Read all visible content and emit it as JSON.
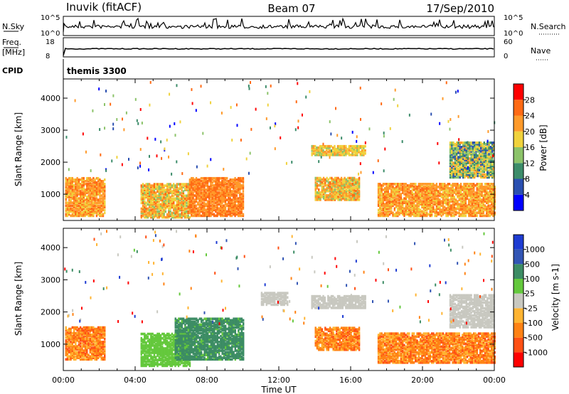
{
  "header": {
    "station": "Inuvik (fitACF)",
    "beam": "Beam 07",
    "date": "17/Sep/2010"
  },
  "top_panels": {
    "nsky_label": "N.Sky",
    "nsky_ticks": [
      "10^5",
      "10^0"
    ],
    "nsearch_label": "N.Search",
    "nsearch_ticks": [
      "10^5",
      "10^0"
    ],
    "freq_label": [
      "Freq.",
      "[MHz]"
    ],
    "freq_ticks": [
      "18",
      "8"
    ],
    "nave_label": "Nave",
    "nave_ticks": [
      "60",
      "0"
    ],
    "cpid_label": "CPID",
    "cpid_value": "themis 3300"
  },
  "colors": {
    "power": [
      "#0000ff",
      "#2a4fb0",
      "#3c8c6a",
      "#8cc36a",
      "#f0d23c",
      "#ff9a2a",
      "#ff6a14",
      "#ff0000"
    ],
    "velocity": [
      "#1e3cd2",
      "#3255b4",
      "#3c8c64",
      "#64c83c",
      "#c8c8c0",
      "#ffb432",
      "#ff8214",
      "#ff5014",
      "#ff0000"
    ]
  },
  "chart_data": [
    {
      "type": "heatmap",
      "title": "Power",
      "ylabel": "Slant Range [km]",
      "ylim": [
        180,
        4600
      ],
      "yticks": [
        1000,
        2000,
        3000,
        4000
      ],
      "xlim": [
        0,
        24
      ],
      "colorbar": {
        "label": "Power [dB]",
        "ticks": [
          "28",
          "24",
          "20",
          "16",
          "12",
          "8",
          "4"
        ]
      },
      "echo_regions": [
        {
          "t0": 0.1,
          "t1": 2.3,
          "r0": 300,
          "r1": 1500,
          "value": "20-28"
        },
        {
          "t0": 4.3,
          "t1": 7.0,
          "r0": 250,
          "r1": 1300,
          "value": "16-28"
        },
        {
          "t0": 7.0,
          "t1": 10.0,
          "r0": 300,
          "r1": 1500,
          "value": "24-28"
        },
        {
          "t0": 13.8,
          "t1": 16.8,
          "r0": 2200,
          "r1": 2500,
          "value": "16-24"
        },
        {
          "t0": 14.0,
          "t1": 16.5,
          "r0": 800,
          "r1": 1500,
          "value": "16-28"
        },
        {
          "t0": 17.5,
          "t1": 24.0,
          "r0": 300,
          "r1": 1300,
          "value": "20-28"
        },
        {
          "t0": 21.5,
          "t1": 24.0,
          "r0": 1500,
          "r1": 2600,
          "value": "8-24"
        }
      ]
    },
    {
      "type": "heatmap",
      "title": "Velocity",
      "ylabel": "Slant Range [km]",
      "xlabel": "Time UT",
      "ylim": [
        180,
        4600
      ],
      "yticks": [
        1000,
        2000,
        3000,
        4000
      ],
      "xlim": [
        0,
        24
      ],
      "xticks": [
        "00:00",
        "04:00",
        "08:00",
        "12:00",
        "16:00",
        "20:00",
        "00:00"
      ],
      "colorbar": {
        "label": "Velocity [m s-1]",
        "ticks": [
          "1000",
          "500",
          "100",
          "25",
          "-25",
          "-100",
          "-500",
          "-1000"
        ]
      },
      "echo_regions": [
        {
          "t0": 0.1,
          "t1": 2.3,
          "r0": 500,
          "r1": 1500,
          "value": "-100 to -500"
        },
        {
          "t0": 4.3,
          "t1": 7.0,
          "r0": 300,
          "r1": 1300,
          "value": "25 to 100"
        },
        {
          "t0": 6.2,
          "t1": 10.0,
          "r0": 500,
          "r1": 1800,
          "value": "100 to 500"
        },
        {
          "t0": 11.0,
          "t1": 12.5,
          "r0": 2200,
          "r1": 2600,
          "value": "-25 to 25"
        },
        {
          "t0": 13.8,
          "t1": 16.8,
          "r0": 2100,
          "r1": 2500,
          "value": "-25 to 25"
        },
        {
          "t0": 14.0,
          "t1": 16.5,
          "r0": 800,
          "r1": 1500,
          "value": "-100 to -500"
        },
        {
          "t0": 17.5,
          "t1": 24.0,
          "r0": 400,
          "r1": 1300,
          "value": "-100 to -500"
        },
        {
          "t0": 21.5,
          "t1": 24.0,
          "r0": 1500,
          "r1": 2500,
          "value": "-25 to 25"
        }
      ]
    }
  ]
}
